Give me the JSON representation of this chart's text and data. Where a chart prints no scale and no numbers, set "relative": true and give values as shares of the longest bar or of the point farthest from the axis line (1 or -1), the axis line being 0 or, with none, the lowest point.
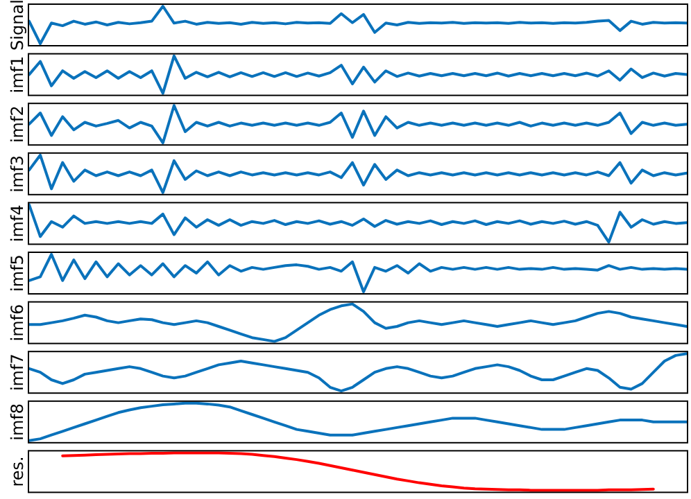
{
  "chart_data": [
    {
      "type": "line",
      "ylabel": "Signal",
      "relative": true,
      "color": "#0a72bb",
      "categories": [
        null,
        null,
        null,
        null,
        null,
        null,
        null,
        null,
        null,
        null,
        null,
        null,
        null,
        null,
        null,
        null,
        null,
        null,
        null,
        null,
        null,
        null,
        null,
        null,
        null,
        null,
        null,
        null,
        null,
        null,
        null,
        null,
        null,
        null,
        null,
        null,
        null,
        null,
        null,
        null,
        null,
        null,
        null,
        null,
        null,
        null,
        null,
        null,
        null,
        null,
        null,
        null,
        null,
        null,
        null,
        null,
        null,
        null,
        null,
        null
      ],
      "values": [
        0.6,
        0,
        0.55,
        0.48,
        0.6,
        0.52,
        0.58,
        0.5,
        0.57,
        0.53,
        0.56,
        0.6,
        1,
        0.55,
        0.6,
        0.52,
        0.57,
        0.54,
        0.56,
        0.52,
        0.57,
        0.54,
        0.56,
        0.53,
        0.57,
        0.55,
        0.56,
        0.54,
        0.8,
        0.56,
        0.78,
        0.3,
        0.55,
        0.5,
        0.57,
        0.54,
        0.56,
        0.55,
        0.57,
        0.54,
        0.56,
        0.55,
        0.56,
        0.54,
        0.57,
        0.55,
        0.56,
        0.54,
        0.56,
        0.55,
        0.57,
        0.6,
        0.62,
        0.35,
        0.6,
        0.52,
        0.57,
        0.55,
        0.56,
        0.55
      ]
    },
    {
      "type": "line",
      "ylabel": "imf1",
      "relative": true,
      "color": "#0a72bb",
      "categories": [
        null,
        null,
        null,
        null,
        null,
        null,
        null,
        null,
        null,
        null,
        null,
        null,
        null,
        null,
        null,
        null,
        null,
        null,
        null,
        null,
        null,
        null,
        null,
        null,
        null,
        null,
        null,
        null,
        null,
        null,
        null,
        null,
        null,
        null,
        null,
        null,
        null,
        null,
        null,
        null,
        null,
        null,
        null,
        null,
        null,
        null,
        null,
        null,
        null,
        null,
        null,
        null,
        null,
        null,
        null,
        null,
        null,
        null,
        null,
        null
      ],
      "values": [
        0.5,
        0.85,
        0.2,
        0.6,
        0.4,
        0.58,
        0.42,
        0.6,
        0.4,
        0.58,
        0.42,
        0.6,
        0,
        1,
        0.4,
        0.56,
        0.44,
        0.56,
        0.44,
        0.55,
        0.45,
        0.55,
        0.45,
        0.55,
        0.45,
        0.54,
        0.46,
        0.55,
        0.75,
        0.25,
        0.7,
        0.3,
        0.6,
        0.45,
        0.54,
        0.46,
        0.53,
        0.47,
        0.53,
        0.47,
        0.53,
        0.47,
        0.54,
        0.46,
        0.53,
        0.47,
        0.53,
        0.47,
        0.53,
        0.47,
        0.54,
        0.46,
        0.6,
        0.35,
        0.65,
        0.42,
        0.54,
        0.46,
        0.53,
        0.5
      ]
    },
    {
      "type": "line",
      "ylabel": "imf2",
      "relative": true,
      "color": "#0a72bb",
      "categories": [
        null,
        null,
        null,
        null,
        null,
        null,
        null,
        null,
        null,
        null,
        null,
        null,
        null,
        null,
        null,
        null,
        null,
        null,
        null,
        null,
        null,
        null,
        null,
        null,
        null,
        null,
        null,
        null,
        null,
        null,
        null,
        null,
        null,
        null,
        null,
        null,
        null,
        null,
        null,
        null,
        null,
        null,
        null,
        null,
        null,
        null,
        null,
        null,
        null,
        null,
        null,
        null,
        null,
        null,
        null,
        null,
        null,
        null,
        null,
        null
      ],
      "values": [
        0.5,
        0.8,
        0.2,
        0.7,
        0.35,
        0.55,
        0.45,
        0.52,
        0.6,
        0.4,
        0.55,
        0.45,
        0,
        1,
        0.3,
        0.55,
        0.45,
        0.55,
        0.45,
        0.53,
        0.47,
        0.53,
        0.47,
        0.53,
        0.47,
        0.53,
        0.47,
        0.55,
        0.8,
        0.15,
        0.85,
        0.2,
        0.7,
        0.4,
        0.55,
        0.47,
        0.53,
        0.47,
        0.53,
        0.47,
        0.53,
        0.47,
        0.53,
        0.47,
        0.55,
        0.45,
        0.53,
        0.47,
        0.53,
        0.47,
        0.53,
        0.47,
        0.55,
        0.8,
        0.25,
        0.55,
        0.47,
        0.53,
        0.47,
        0.5
      ]
    },
    {
      "type": "line",
      "ylabel": "imf3",
      "relative": true,
      "color": "#0a72bb",
      "categories": [
        null,
        null,
        null,
        null,
        null,
        null,
        null,
        null,
        null,
        null,
        null,
        null,
        null,
        null,
        null,
        null,
        null,
        null,
        null,
        null,
        null,
        null,
        null,
        null,
        null,
        null,
        null,
        null,
        null,
        null,
        null,
        null,
        null,
        null,
        null,
        null,
        null,
        null,
        null,
        null,
        null,
        null,
        null,
        null,
        null,
        null,
        null,
        null,
        null,
        null,
        null,
        null,
        null,
        null,
        null,
        null,
        null,
        null,
        null,
        null
      ],
      "values": [
        0.6,
        1,
        0.1,
        0.8,
        0.3,
        0.6,
        0.45,
        0.55,
        0.45,
        0.55,
        0.45,
        0.6,
        0,
        0.85,
        0.35,
        0.58,
        0.45,
        0.55,
        0.45,
        0.55,
        0.47,
        0.53,
        0.47,
        0.53,
        0.47,
        0.53,
        0.47,
        0.55,
        0.4,
        0.8,
        0.2,
        0.75,
        0.35,
        0.6,
        0.45,
        0.53,
        0.47,
        0.53,
        0.47,
        0.53,
        0.47,
        0.53,
        0.47,
        0.53,
        0.47,
        0.53,
        0.47,
        0.53,
        0.47,
        0.53,
        0.47,
        0.55,
        0.45,
        0.8,
        0.25,
        0.6,
        0.45,
        0.53,
        0.47,
        0.52
      ]
    },
    {
      "type": "line",
      "ylabel": "imf4",
      "relative": true,
      "color": "#0a72bb",
      "categories": [
        null,
        null,
        null,
        null,
        null,
        null,
        null,
        null,
        null,
        null,
        null,
        null,
        null,
        null,
        null,
        null,
        null,
        null,
        null,
        null,
        null,
        null,
        null,
        null,
        null,
        null,
        null,
        null,
        null,
        null,
        null,
        null,
        null,
        null,
        null,
        null,
        null,
        null,
        null,
        null,
        null,
        null,
        null,
        null,
        null,
        null,
        null,
        null,
        null,
        null,
        null,
        null,
        null,
        null,
        null,
        null,
        null,
        null,
        null,
        null
      ],
      "values": [
        1,
        0.15,
        0.55,
        0.4,
        0.7,
        0.5,
        0.55,
        0.5,
        0.55,
        0.5,
        0.55,
        0.5,
        0.75,
        0.2,
        0.65,
        0.4,
        0.6,
        0.45,
        0.6,
        0.45,
        0.55,
        0.5,
        0.58,
        0.47,
        0.55,
        0.5,
        0.57,
        0.48,
        0.55,
        0.45,
        0.62,
        0.42,
        0.58,
        0.48,
        0.55,
        0.5,
        0.57,
        0.47,
        0.55,
        0.5,
        0.57,
        0.47,
        0.55,
        0.5,
        0.57,
        0.48,
        0.55,
        0.5,
        0.56,
        0.48,
        0.55,
        0.45,
        0,
        0.8,
        0.4,
        0.6,
        0.48,
        0.55,
        0.5,
        0.52
      ]
    },
    {
      "type": "line",
      "ylabel": "imf5",
      "relative": true,
      "color": "#0a72bb",
      "categories": [
        null,
        null,
        null,
        null,
        null,
        null,
        null,
        null,
        null,
        null,
        null,
        null,
        null,
        null,
        null,
        null,
        null,
        null,
        null,
        null,
        null,
        null,
        null,
        null,
        null,
        null,
        null,
        null,
        null,
        null,
        null,
        null,
        null,
        null,
        null,
        null,
        null,
        null,
        null,
        null,
        null,
        null,
        null,
        null,
        null,
        null,
        null,
        null,
        null,
        null,
        null,
        null,
        null,
        null,
        null,
        null,
        null,
        null,
        null,
        null
      ],
      "values": [
        0.3,
        0.4,
        1,
        0.3,
        0.85,
        0.35,
        0.8,
        0.4,
        0.75,
        0.45,
        0.7,
        0.45,
        0.75,
        0.4,
        0.7,
        0.5,
        0.8,
        0.45,
        0.7,
        0.55,
        0.65,
        0.6,
        0.65,
        0.7,
        0.72,
        0.68,
        0.6,
        0.65,
        0.55,
        0.8,
        0,
        0.65,
        0.55,
        0.7,
        0.5,
        0.75,
        0.55,
        0.65,
        0.6,
        0.65,
        0.6,
        0.65,
        0.6,
        0.65,
        0.6,
        0.62,
        0.6,
        0.65,
        0.6,
        0.62,
        0.6,
        0.58,
        0.7,
        0.6,
        0.65,
        0.6,
        0.62,
        0.6,
        0.62,
        0.6
      ]
    },
    {
      "type": "line",
      "ylabel": "imf6",
      "relative": true,
      "color": "#0a72bb",
      "categories": [
        null,
        null,
        null,
        null,
        null,
        null,
        null,
        null,
        null,
        null,
        null,
        null,
        null,
        null,
        null,
        null,
        null,
        null,
        null,
        null,
        null,
        null,
        null,
        null,
        null,
        null,
        null,
        null,
        null,
        null,
        null,
        null,
        null,
        null,
        null,
        null,
        null,
        null,
        null,
        null,
        null,
        null,
        null,
        null,
        null,
        null,
        null,
        null,
        null,
        null,
        null,
        null,
        null,
        null,
        null,
        null,
        null,
        null,
        null,
        null
      ],
      "values": [
        0.45,
        0.45,
        0.5,
        0.55,
        0.62,
        0.7,
        0.65,
        0.55,
        0.5,
        0.55,
        0.6,
        0.58,
        0.5,
        0.45,
        0.5,
        0.55,
        0.5,
        0.4,
        0.3,
        0.2,
        0.1,
        0.05,
        0,
        0.1,
        0.3,
        0.5,
        0.7,
        0.85,
        0.95,
        1,
        0.8,
        0.5,
        0.35,
        0.4,
        0.5,
        0.55,
        0.5,
        0.45,
        0.5,
        0.55,
        0.5,
        0.45,
        0.4,
        0.45,
        0.5,
        0.55,
        0.5,
        0.45,
        0.5,
        0.55,
        0.65,
        0.75,
        0.8,
        0.75,
        0.65,
        0.6,
        0.55,
        0.5,
        0.45,
        0.4
      ]
    },
    {
      "type": "line",
      "ylabel": "imf7",
      "relative": true,
      "color": "#0a72bb",
      "categories": [
        null,
        null,
        null,
        null,
        null,
        null,
        null,
        null,
        null,
        null,
        null,
        null,
        null,
        null,
        null,
        null,
        null,
        null,
        null,
        null,
        null,
        null,
        null,
        null,
        null,
        null,
        null,
        null,
        null,
        null,
        null,
        null,
        null,
        null,
        null,
        null,
        null,
        null,
        null,
        null,
        null,
        null,
        null,
        null,
        null,
        null,
        null,
        null,
        null,
        null,
        null,
        null,
        null,
        null,
        null,
        null,
        null,
        null,
        null,
        null
      ],
      "values": [
        0.6,
        0.5,
        0.3,
        0.2,
        0.3,
        0.45,
        0.5,
        0.55,
        0.6,
        0.65,
        0.6,
        0.5,
        0.4,
        0.35,
        0.4,
        0.5,
        0.6,
        0.7,
        0.75,
        0.8,
        0.75,
        0.7,
        0.65,
        0.6,
        0.55,
        0.5,
        0.35,
        0.1,
        0,
        0.1,
        0.3,
        0.5,
        0.6,
        0.65,
        0.6,
        0.5,
        0.4,
        0.35,
        0.4,
        0.5,
        0.6,
        0.65,
        0.7,
        0.65,
        0.55,
        0.4,
        0.3,
        0.3,
        0.4,
        0.5,
        0.6,
        0.55,
        0.35,
        0.1,
        0.05,
        0.2,
        0.5,
        0.8,
        0.95,
        1
      ]
    },
    {
      "type": "line",
      "ylabel": "imf8",
      "relative": true,
      "color": "#0a72bb",
      "categories": [
        null,
        null,
        null,
        null,
        null,
        null,
        null,
        null,
        null,
        null,
        null,
        null,
        null,
        null,
        null,
        null,
        null,
        null,
        null,
        null,
        null,
        null,
        null,
        null,
        null,
        null,
        null,
        null,
        null,
        null,
        null,
        null,
        null,
        null,
        null,
        null,
        null,
        null,
        null,
        null,
        null,
        null,
        null,
        null,
        null,
        null,
        null,
        null,
        null,
        null,
        null,
        null,
        null,
        null,
        null,
        null,
        null,
        null,
        null,
        null
      ],
      "values": [
        0,
        0.05,
        0.15,
        0.25,
        0.35,
        0.45,
        0.55,
        0.65,
        0.75,
        0.82,
        0.88,
        0.92,
        0.96,
        0.98,
        1,
        1,
        0.98,
        0.95,
        0.9,
        0.8,
        0.7,
        0.6,
        0.5,
        0.4,
        0.3,
        0.25,
        0.2,
        0.15,
        0.15,
        0.15,
        0.2,
        0.25,
        0.3,
        0.35,
        0.4,
        0.45,
        0.5,
        0.55,
        0.6,
        0.6,
        0.6,
        0.55,
        0.5,
        0.45,
        0.4,
        0.35,
        0.3,
        0.3,
        0.3,
        0.35,
        0.4,
        0.45,
        0.5,
        0.55,
        0.55,
        0.55,
        0.5,
        0.5,
        0.5,
        0.5
      ]
    },
    {
      "type": "line",
      "ylabel": "res.",
      "relative": true,
      "color": "#ff0000",
      "categories": [
        null,
        null,
        null,
        null,
        null,
        null,
        null,
        null,
        null,
        null,
        null,
        null,
        null,
        null,
        null,
        null,
        null,
        null,
        null,
        null,
        null,
        null,
        null,
        null,
        null,
        null,
        null,
        null,
        null,
        null,
        null,
        null,
        null,
        null,
        null,
        null,
        null,
        null,
        null,
        null,
        null,
        null,
        null,
        null,
        null,
        null,
        null,
        null,
        null,
        null,
        null,
        null,
        null,
        null,
        null,
        null,
        null,
        null,
        null,
        null
      ],
      "values": [
        null,
        null,
        null,
        0.92,
        0.93,
        0.94,
        0.95,
        0.96,
        0.97,
        0.98,
        0.98,
        0.99,
        0.99,
        1,
        1,
        1,
        1,
        1,
        0.99,
        0.98,
        0.96,
        0.93,
        0.9,
        0.86,
        0.82,
        0.77,
        0.72,
        0.66,
        0.6,
        0.54,
        0.48,
        0.42,
        0.36,
        0.3,
        0.25,
        0.2,
        0.16,
        0.12,
        0.09,
        0.06,
        0.04,
        0.03,
        0.02,
        0.01,
        0.01,
        0,
        0,
        0,
        0,
        0,
        0,
        0,
        0.01,
        0.01,
        0.01,
        0.02,
        0.03,
        null,
        null,
        null
      ]
    }
  ]
}
